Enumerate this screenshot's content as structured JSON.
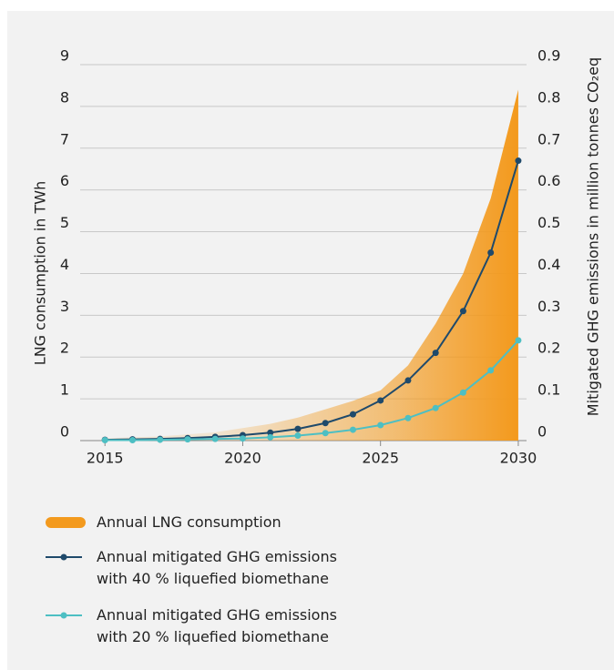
{
  "chart_data": {
    "type": "line",
    "ylabel": "LNG consumption in TWh",
    "y2label": "Mitigated GHG emissions in million tonnes CO₂eq",
    "x": [
      2015,
      2016,
      2017,
      2018,
      2019,
      2020,
      2021,
      2022,
      2023,
      2024,
      2025,
      2026,
      2027,
      2028,
      2029,
      2030
    ],
    "xlim": [
      2014.1,
      2030.3
    ],
    "xticks": [
      2015,
      2020,
      2025,
      2030
    ],
    "ylim": [
      0,
      9
    ],
    "yticks": [
      0,
      1,
      2,
      3,
      4,
      5,
      6,
      7,
      8,
      9
    ],
    "y2lim": [
      0,
      0.9
    ],
    "y2ticks": [
      0,
      0.1,
      0.2,
      0.3,
      0.4,
      0.5,
      0.6,
      0.7,
      0.8,
      0.9
    ],
    "grid": true,
    "series": [
      {
        "name": "Annual LNG consumption",
        "type": "area",
        "color": "#f39a1e",
        "values": [
          0.05,
          0.08,
          0.1,
          0.15,
          0.2,
          0.3,
          0.4,
          0.55,
          0.75,
          0.95,
          1.2,
          1.8,
          2.8,
          4.0,
          5.8,
          8.4
        ]
      },
      {
        "name": "Annual mitigated GHG emissions with 40 % liquefied biomethane",
        "type": "line",
        "axis": "y2",
        "color": "#1f4a6b",
        "values": [
          0.002,
          0.003,
          0.004,
          0.006,
          0.009,
          0.013,
          0.019,
          0.028,
          0.042,
          0.063,
          0.096,
          0.144,
          0.21,
          0.31,
          0.45,
          0.67
        ]
      },
      {
        "name": "Annual mitigated GHG emissions with 20 % liquefied biomethane",
        "type": "line",
        "axis": "y2",
        "color": "#4dbfc3",
        "values": [
          0.001,
          0.001,
          0.002,
          0.003,
          0.004,
          0.005,
          0.008,
          0.012,
          0.018,
          0.026,
          0.037,
          0.054,
          0.078,
          0.115,
          0.168,
          0.24
        ]
      }
    ]
  }
}
